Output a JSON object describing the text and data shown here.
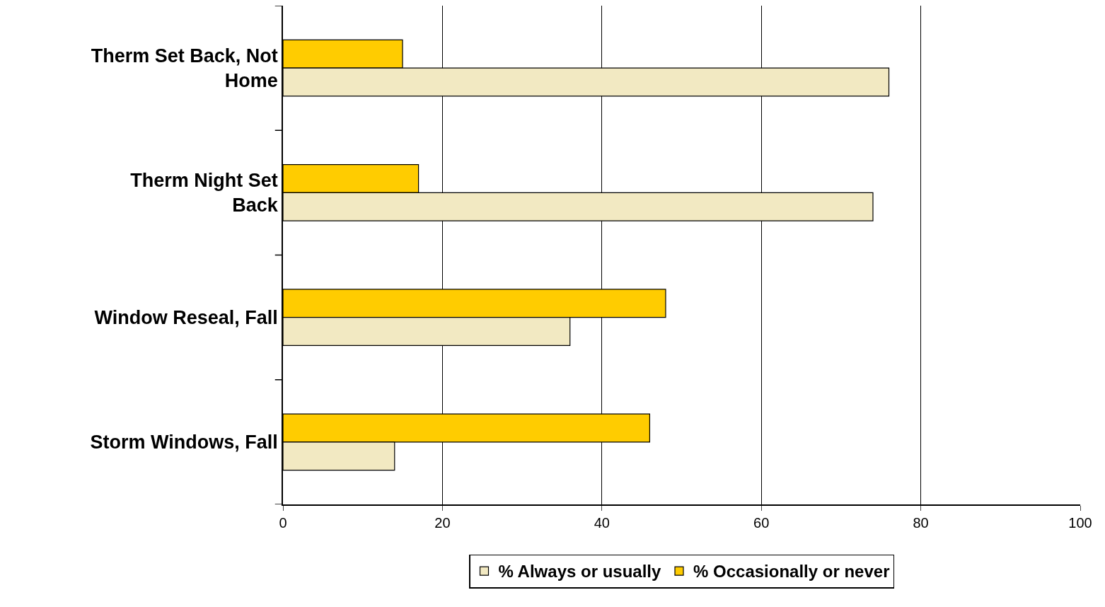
{
  "chart_data": {
    "type": "bar",
    "orientation": "horizontal",
    "categories": [
      "Therm Set Back, Not Home",
      "Therm Night Set Back",
      "Window Reseal, Fall",
      "Storm Windows, Fall"
    ],
    "series": [
      {
        "name": "% Always or usually",
        "color": "#f2e9c2",
        "values": [
          76,
          74,
          36,
          14
        ]
      },
      {
        "name": "% Occasionally or never",
        "color": "#ffcc00",
        "values": [
          15,
          17,
          48,
          46
        ]
      }
    ],
    "xlim": [
      0,
      100
    ],
    "xticks": [
      0,
      20,
      40,
      60,
      80,
      100
    ],
    "grid": "x",
    "legend": "bottom"
  }
}
